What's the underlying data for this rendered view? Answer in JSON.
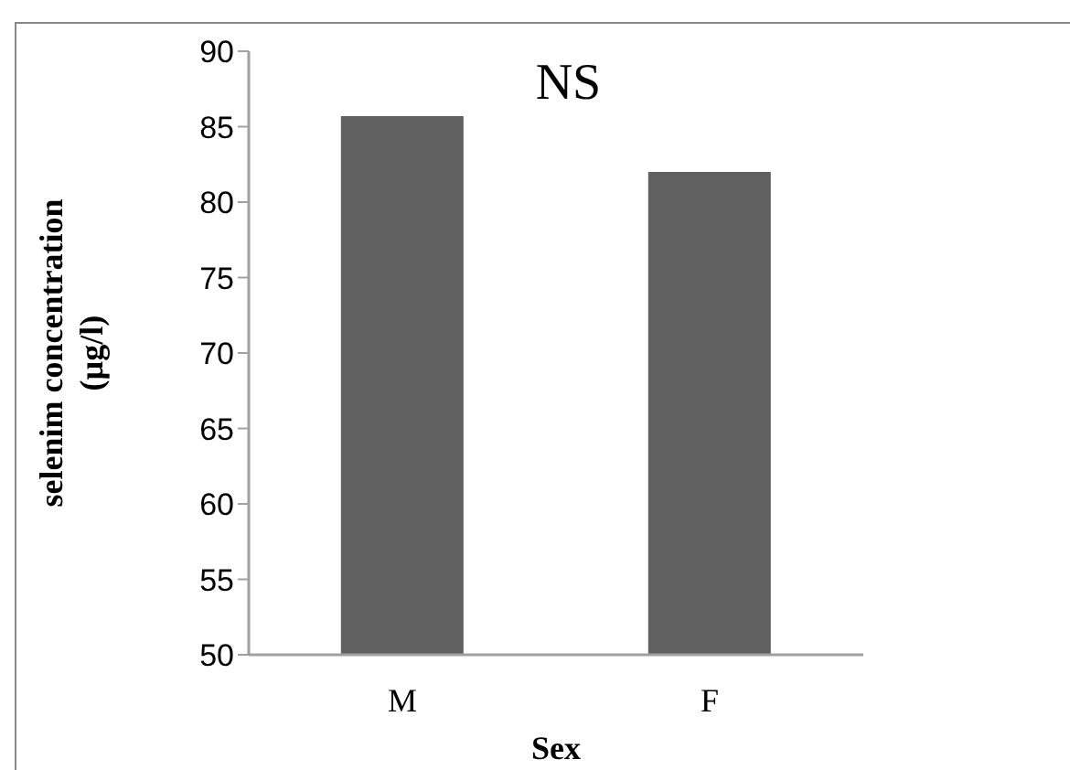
{
  "chart_data": {
    "type": "bar",
    "xlabel": "Sex",
    "ylabel": "selenim concentration\n(µg/l)",
    "annotations": [
      "NS"
    ],
    "categories": [
      "M",
      "F"
    ],
    "values": [
      85.7,
      82.0
    ],
    "color": "#606060",
    "ylim": [
      50,
      90
    ],
    "yticks": [
      50,
      55,
      60,
      65,
      70,
      75,
      80,
      85,
      90
    ],
    "grid": false
  }
}
